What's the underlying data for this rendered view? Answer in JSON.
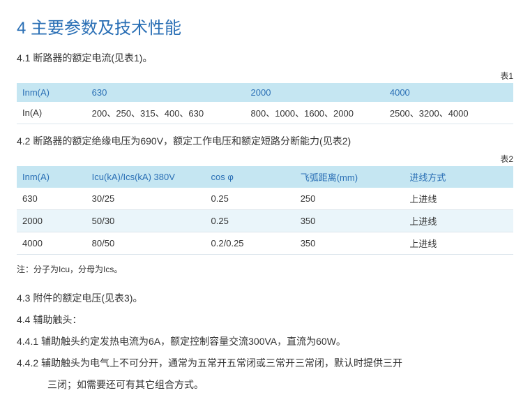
{
  "colors": {
    "heading": "#2a6fb5",
    "header_row_bg": "#c5e6f2",
    "alt_row_bg": "#eaf5fa",
    "border": "#dce6ec",
    "text": "#333333",
    "background": "#ffffff"
  },
  "heading": "4 主要参数及技术性能",
  "section_4_1": {
    "title": "4.1 断路器的额定电流(见表1)。",
    "table_label": "表1",
    "table": {
      "columns": [
        "Inm(A)",
        "630",
        "2000",
        "4000"
      ],
      "rows": [
        [
          "In(A)",
          "200、250、315、400、630",
          "800、1000、1600、2000",
          "2500、3200、4000"
        ]
      ]
    }
  },
  "section_4_2": {
    "title": "4.2 断路器的额定绝缘电压为690V，额定工作电压和额定短路分断能力(见表2)",
    "table_label": "表2",
    "table": {
      "columns": [
        "Inm(A)",
        "Icu(kA)/Ics(kA) 380V",
        "cos φ",
        "飞弧距离(mm)",
        "进线方式"
      ],
      "rows": [
        [
          "630",
          "30/25",
          "0.25",
          "250",
          "上进线"
        ],
        [
          "2000",
          "50/30",
          "0.25",
          "350",
          "上进线"
        ],
        [
          "4000",
          "80/50",
          "0.2/0.25",
          "350",
          "上进线"
        ]
      ]
    },
    "note": "注：分子为Icu，分母为Ics。"
  },
  "section_4_3": {
    "title": "4.3 附件的额定电压(见表3)。"
  },
  "section_4_4": {
    "title": "4.4 辅助触头：",
    "item_4_4_1": "4.4.1 辅助触头约定发热电流为6A，额定控制容量交流300VA，直流为60W。",
    "item_4_4_2_line1": "4.4.2 辅助触头为电气上不可分开，通常为五常开五常闭或三常开三常闭，默认时提供三开",
    "item_4_4_2_line2": "三闭；如需要还可有其它组合方式。"
  }
}
